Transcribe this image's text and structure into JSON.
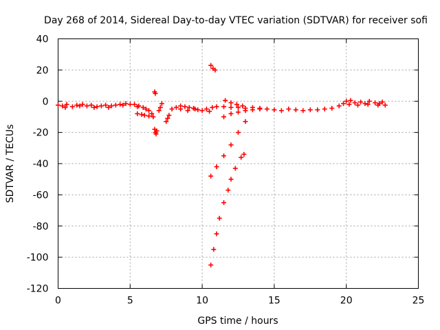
{
  "chart_data": {
    "type": "scatter",
    "title": "Day 268 of 2014, Sidereal Day-to-day VTEC variation (SDTVAR) for receiver sofi",
    "xlabel": "GPS time / hours",
    "ylabel": "SDTVAR / TECUs",
    "xlim": [
      0,
      25
    ],
    "ylim": [
      -120,
      40
    ],
    "x_ticks": [
      0,
      5,
      10,
      15,
      20,
      25
    ],
    "y_ticks": [
      -120,
      -100,
      -80,
      -60,
      -40,
      -20,
      0,
      20,
      40
    ],
    "x_tick_labels": [
      "0",
      "5",
      "10",
      "15",
      "20",
      "25"
    ],
    "y_tick_labels": [
      "-120",
      "-100",
      "-80",
      "-60",
      "-40",
      "-20",
      "0",
      "20",
      "40"
    ],
    "grid": true,
    "marker": "plus",
    "color": "#ff0000",
    "series": [
      {
        "points": [
          [
            0.0,
            -2.5
          ],
          [
            0.3,
            -3
          ],
          [
            0.6,
            -2
          ],
          [
            1.0,
            -3.5
          ],
          [
            1.3,
            -2.5
          ],
          [
            1.7,
            -2
          ],
          [
            2.0,
            -3
          ],
          [
            2.3,
            -2.5
          ],
          [
            2.7,
            -3.5
          ],
          [
            3.0,
            -3
          ],
          [
            3.3,
            -2.5
          ],
          [
            3.7,
            -3
          ],
          [
            4.0,
            -2.5
          ],
          [
            4.3,
            -2
          ],
          [
            4.7,
            -1.5
          ],
          [
            5.0,
            -2
          ],
          [
            5.3,
            -2
          ],
          [
            5.6,
            -3
          ],
          [
            5.9,
            -4
          ],
          [
            6.1,
            -5
          ],
          [
            6.3,
            -6
          ],
          [
            6.5,
            -8
          ],
          [
            0.5,
            -4
          ],
          [
            1.5,
            -3
          ],
          [
            2.5,
            -4
          ],
          [
            3.5,
            -4
          ],
          [
            4.5,
            -2.5
          ],
          [
            5.5,
            -3.5
          ],
          [
            5.5,
            -8
          ],
          [
            5.8,
            -8.5
          ],
          [
            6.0,
            -9
          ],
          [
            6.3,
            -9.5
          ],
          [
            6.6,
            -10
          ],
          [
            6.7,
            6
          ],
          [
            6.75,
            5
          ],
          [
            6.7,
            -18
          ],
          [
            6.75,
            -20
          ],
          [
            6.8,
            -21
          ],
          [
            6.85,
            -19
          ],
          [
            7.0,
            -6
          ],
          [
            7.1,
            -4
          ],
          [
            7.2,
            -1.5
          ],
          [
            7.5,
            -13
          ],
          [
            7.6,
            -11
          ],
          [
            7.7,
            -9
          ],
          [
            7.9,
            -5
          ],
          [
            8.2,
            -4
          ],
          [
            8.5,
            -3
          ],
          [
            8.8,
            -3.5
          ],
          [
            9.1,
            -4
          ],
          [
            9.4,
            -4.5
          ],
          [
            9.7,
            -5.5
          ],
          [
            10.0,
            -6
          ],
          [
            10.3,
            -5
          ],
          [
            10.5,
            -6.5
          ],
          [
            8.5,
            -5
          ],
          [
            9.0,
            -6
          ],
          [
            9.5,
            -5
          ],
          [
            10.6,
            23
          ],
          [
            10.75,
            21
          ],
          [
            10.9,
            20
          ],
          [
            10.7,
            -4
          ],
          [
            11.0,
            -3.5
          ],
          [
            11.5,
            -3.5
          ],
          [
            12.0,
            -4
          ],
          [
            12.5,
            -4
          ],
          [
            13.0,
            -4.5
          ],
          [
            13.5,
            -4
          ],
          [
            14.0,
            -4.5
          ],
          [
            14.5,
            -5
          ],
          [
            11.6,
            0.5
          ],
          [
            12.0,
            -1
          ],
          [
            12.4,
            -2
          ],
          [
            12.8,
            -3
          ],
          [
            11.5,
            -10
          ],
          [
            12.0,
            -8
          ],
          [
            12.5,
            -7
          ],
          [
            13.0,
            -6
          ],
          [
            13.5,
            -5.5
          ],
          [
            14.0,
            -5
          ],
          [
            10.6,
            -48
          ],
          [
            11.0,
            -42
          ],
          [
            11.5,
            -35
          ],
          [
            12.0,
            -28
          ],
          [
            12.5,
            -20
          ],
          [
            13.0,
            -13
          ],
          [
            10.6,
            -105
          ],
          [
            10.8,
            -95
          ],
          [
            11.0,
            -85
          ],
          [
            11.2,
            -75
          ],
          [
            11.5,
            -65
          ],
          [
            11.8,
            -57
          ],
          [
            12.0,
            -50
          ],
          [
            12.3,
            -43
          ],
          [
            12.7,
            -36
          ],
          [
            12.9,
            -34
          ],
          [
            15.0,
            -5.5
          ],
          [
            15.5,
            -6
          ],
          [
            16.0,
            -5
          ],
          [
            16.5,
            -5.5
          ],
          [
            17.0,
            -6
          ],
          [
            17.5,
            -5.5
          ],
          [
            18.0,
            -5.5
          ],
          [
            18.5,
            -5
          ],
          [
            19.0,
            -4.5
          ],
          [
            19.5,
            -3
          ],
          [
            19.8,
            -1.5
          ],
          [
            20.0,
            0
          ],
          [
            20.3,
            0.5
          ],
          [
            20.6,
            -1
          ],
          [
            21.0,
            -0.5
          ],
          [
            21.3,
            -1.5
          ],
          [
            21.6,
            0
          ],
          [
            22.0,
            -1
          ],
          [
            22.3,
            -1.5
          ],
          [
            22.7,
            -2.5
          ],
          [
            20.2,
            -2
          ],
          [
            20.8,
            -2.5
          ],
          [
            21.5,
            -2
          ],
          [
            22.2,
            -2.5
          ],
          [
            22.5,
            -0.5
          ]
        ]
      }
    ]
  }
}
